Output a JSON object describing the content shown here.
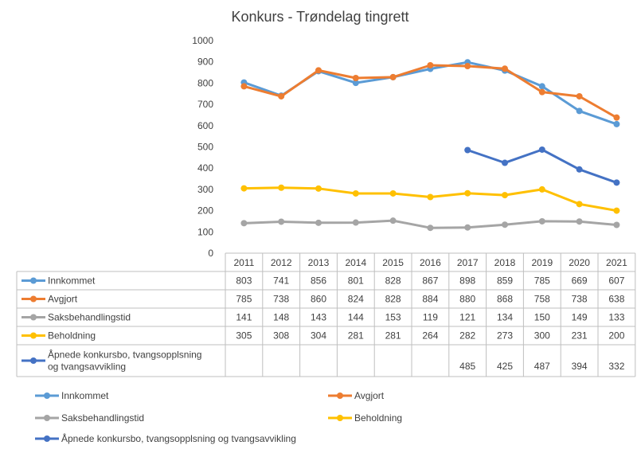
{
  "chart_data": {
    "type": "line",
    "title": "Konkurs - Trøndelag tingrett",
    "xlabel": "",
    "ylabel": "",
    "ylim": [
      0,
      1000
    ],
    "y_ticks": [
      "0",
      "100",
      "200",
      "300",
      "400",
      "500",
      "600",
      "700",
      "800",
      "900",
      "1000"
    ],
    "categories": [
      "2011",
      "2012",
      "2013",
      "2014",
      "2015",
      "2016",
      "2017",
      "2018",
      "2019",
      "2020",
      "2021"
    ],
    "grid": false,
    "data_table": true,
    "legend_position": "bottom",
    "series": [
      {
        "name": "Innkommet",
        "color": "#5B9BD5",
        "values": [
          803,
          741,
          856,
          801,
          828,
          867,
          898,
          859,
          785,
          669,
          607
        ]
      },
      {
        "name": "Avgjort",
        "color": "#ED7D31",
        "values": [
          785,
          738,
          860,
          824,
          828,
          884,
          880,
          868,
          758,
          738,
          638
        ]
      },
      {
        "name": "Saksbehandlingstid",
        "color": "#A5A5A5",
        "values": [
          141,
          148,
          143,
          144,
          153,
          119,
          121,
          134,
          150,
          149,
          133
        ]
      },
      {
        "name": "Beholdning",
        "color": "#FFC000",
        "values": [
          305,
          308,
          304,
          281,
          281,
          264,
          282,
          273,
          300,
          231,
          200
        ]
      },
      {
        "name": "Åpnede konkursbo, tvangsopplsning og tvangsavvikling",
        "color": "#4472C4",
        "table_label_lines": [
          "Åpnede konkursbo, tvangsopplsning",
          "og tvangsavvikling"
        ],
        "values": [
          null,
          null,
          null,
          null,
          null,
          null,
          485,
          425,
          487,
          394,
          332
        ]
      }
    ]
  }
}
